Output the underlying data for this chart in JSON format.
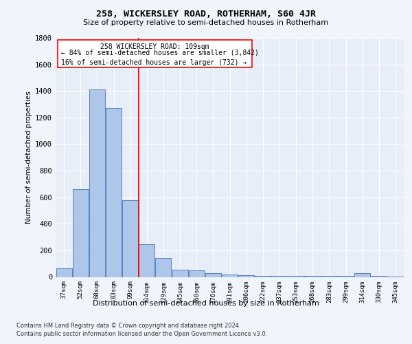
{
  "title": "258, WICKERSLEY ROAD, ROTHERHAM, S60 4JR",
  "subtitle": "Size of property relative to semi-detached houses in Rotherham",
  "xlabel": "Distribution of semi-detached houses by size in Rotherham",
  "ylabel": "Number of semi-detached properties",
  "categories": [
    "37sqm",
    "52sqm",
    "68sqm",
    "83sqm",
    "99sqm",
    "114sqm",
    "129sqm",
    "145sqm",
    "160sqm",
    "176sqm",
    "191sqm",
    "206sqm",
    "222sqm",
    "237sqm",
    "253sqm",
    "268sqm",
    "283sqm",
    "299sqm",
    "314sqm",
    "330sqm",
    "345sqm"
  ],
  "values": [
    65,
    660,
    1410,
    1270,
    575,
    245,
    140,
    55,
    50,
    30,
    20,
    12,
    8,
    7,
    7,
    6,
    6,
    6,
    30,
    6,
    4
  ],
  "bar_color": "#aec6e8",
  "bar_edge_color": "#4472c4",
  "annotation_line1": "258 WICKERSLEY ROAD: 109sqm",
  "annotation_line2": "← 84% of semi-detached houses are smaller (3,842)",
  "annotation_line3": "16% of semi-detached houses are larger (732) →",
  "ylim": [
    0,
    1800
  ],
  "footer1": "Contains HM Land Registry data © Crown copyright and database right 2024.",
  "footer2": "Contains public sector information licensed under the Open Government Licence v3.0.",
  "background_color": "#f0f4fb",
  "plot_bg_color": "#e8eef8"
}
